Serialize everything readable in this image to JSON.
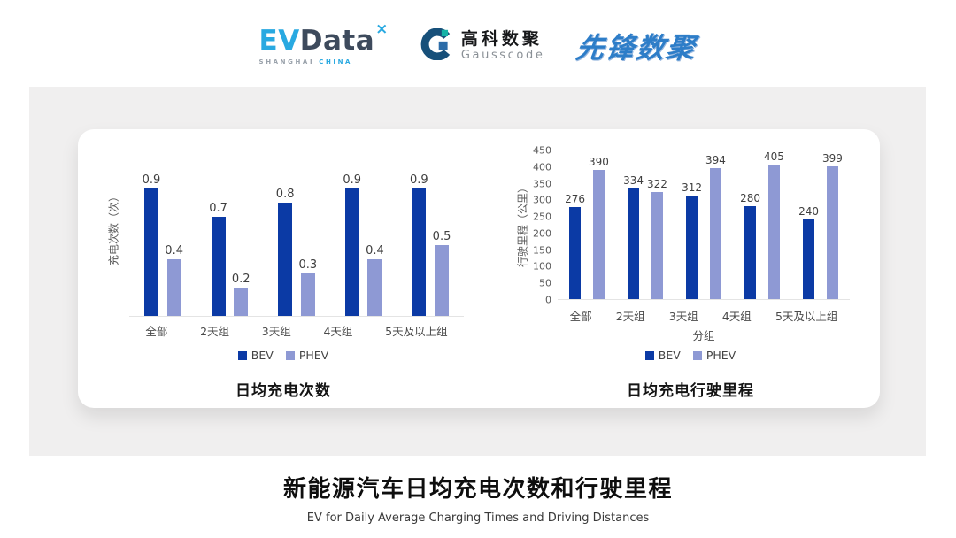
{
  "header": {
    "evdata_logo": {
      "ev": "EV",
      "data": "Data",
      "sparkle": "×",
      "sub_shanghai": "SHANGHAI",
      "sub_china": "CHINA"
    },
    "gausscode_logo": {
      "name_cn": "高科数聚",
      "name_en": "Gausscode"
    },
    "pioneer_logo": {
      "text": "先锋数聚"
    }
  },
  "chart_data": [
    {
      "type": "bar",
      "title": "日均充电次数",
      "ylabel": "充电次数（次）",
      "xlabel": "",
      "categories": [
        "全部",
        "2天组",
        "3天组",
        "4天组",
        "5天及以上组"
      ],
      "series": [
        {
          "name": "BEV",
          "color": "#0b3aa5",
          "values": [
            0.9,
            0.7,
            0.8,
            0.9,
            0.9
          ]
        },
        {
          "name": "PHEV",
          "color": "#8e99d4",
          "values": [
            0.4,
            0.2,
            0.3,
            0.4,
            0.5
          ]
        }
      ],
      "ylim": [
        0,
        1
      ],
      "yticks": [],
      "grid": false,
      "legend_position": "bottom"
    },
    {
      "type": "bar",
      "title": "日均充电行驶里程",
      "ylabel": "行驶里程（公里）",
      "xlabel": "分组",
      "categories": [
        "全部",
        "2天组",
        "3天组",
        "4天组",
        "5天及以上组"
      ],
      "series": [
        {
          "name": "BEV",
          "color": "#0b3aa5",
          "values": [
            276,
            334,
            312,
            280,
            240
          ]
        },
        {
          "name": "PHEV",
          "color": "#8e99d4",
          "values": [
            390,
            322,
            394,
            405,
            399
          ]
        }
      ],
      "ylim": [
        0,
        450
      ],
      "yticks": [
        0,
        50,
        100,
        150,
        200,
        250,
        300,
        350,
        400,
        450
      ],
      "grid": false,
      "legend_position": "bottom"
    }
  ],
  "footer": {
    "title": "新能源汽车日均充电次数和行驶里程",
    "subtitle": "EV for Daily Average Charging Times and Driving Distances"
  },
  "colors": {
    "bev": "#0b3aa5",
    "phev": "#8e99d4",
    "axis_text": "#595959",
    "label_text": "#3f3f3f",
    "panel_bg": "#f0efef",
    "card_bg": "#ffffff"
  }
}
